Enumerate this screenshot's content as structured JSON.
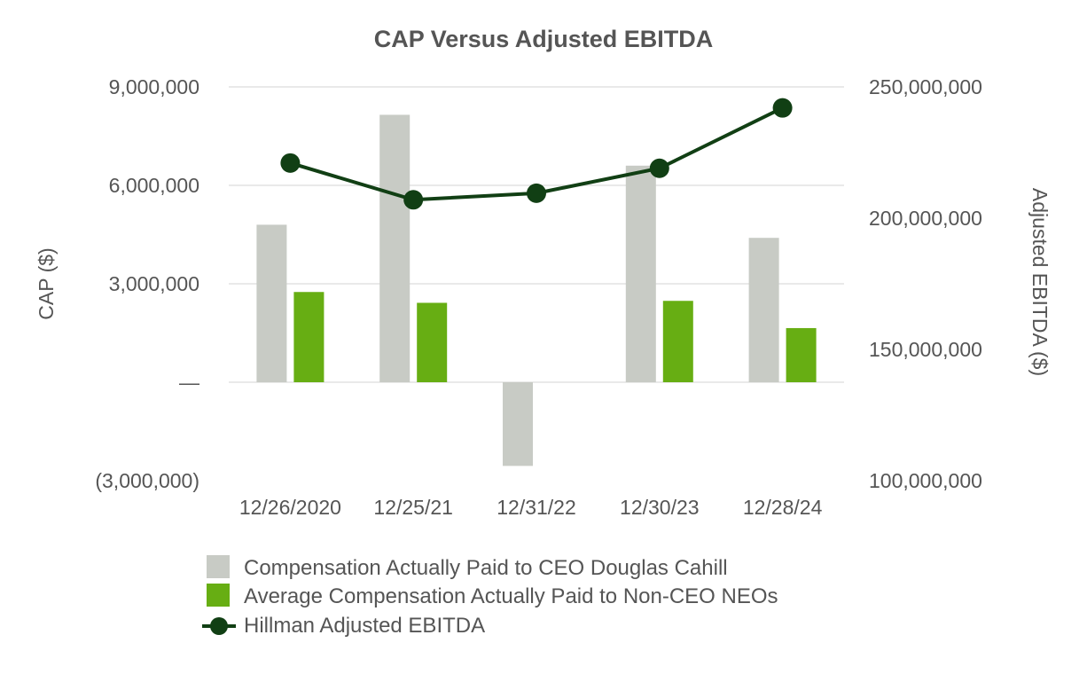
{
  "chart_data": {
    "type": "bar+line",
    "title": "CAP Versus Adjusted EBITDA",
    "categories": [
      "12/26/2020",
      "12/25/21",
      "12/31/22",
      "12/30/23",
      "12/28/24"
    ],
    "left_axis": {
      "label": "CAP ($)",
      "range": [
        -3000000,
        9000000
      ],
      "ticks": [
        {
          "value": 9000000,
          "label": "9,000,000"
        },
        {
          "value": 6000000,
          "label": "6,000,000"
        },
        {
          "value": 3000000,
          "label": "3,000,000"
        },
        {
          "value": 0,
          "label": "—"
        },
        {
          "value": -3000000,
          "label": "(3,000,000)"
        }
      ]
    },
    "right_axis": {
      "label": "Adjusted EBITDA ($)",
      "range": [
        100000000,
        250000000
      ],
      "ticks": [
        {
          "value": 250000000,
          "label": "250,000,000"
        },
        {
          "value": 200000000,
          "label": "200,000,000"
        },
        {
          "value": 150000000,
          "label": "150,000,000"
        },
        {
          "value": 100000000,
          "label": "100,000,000"
        }
      ]
    },
    "series": [
      {
        "name": "Compensation Actually Paid to CEO Douglas Cahill",
        "type": "bar",
        "axis": "left",
        "color": "#c8cbc5",
        "values": [
          4800000,
          8150000,
          -2550000,
          6600000,
          4400000
        ]
      },
      {
        "name": "Average Compensation Actually Paid to Non-CEO NEOs",
        "type": "bar",
        "axis": "left",
        "color": "#67ae13",
        "values": [
          2750000,
          2420000,
          0,
          2480000,
          1650000
        ]
      },
      {
        "name": "Hillman Adjusted EBITDA",
        "type": "line",
        "axis": "right",
        "color": "#113f14",
        "values": [
          221000000,
          207000000,
          209500000,
          219000000,
          242000000
        ]
      }
    ]
  }
}
